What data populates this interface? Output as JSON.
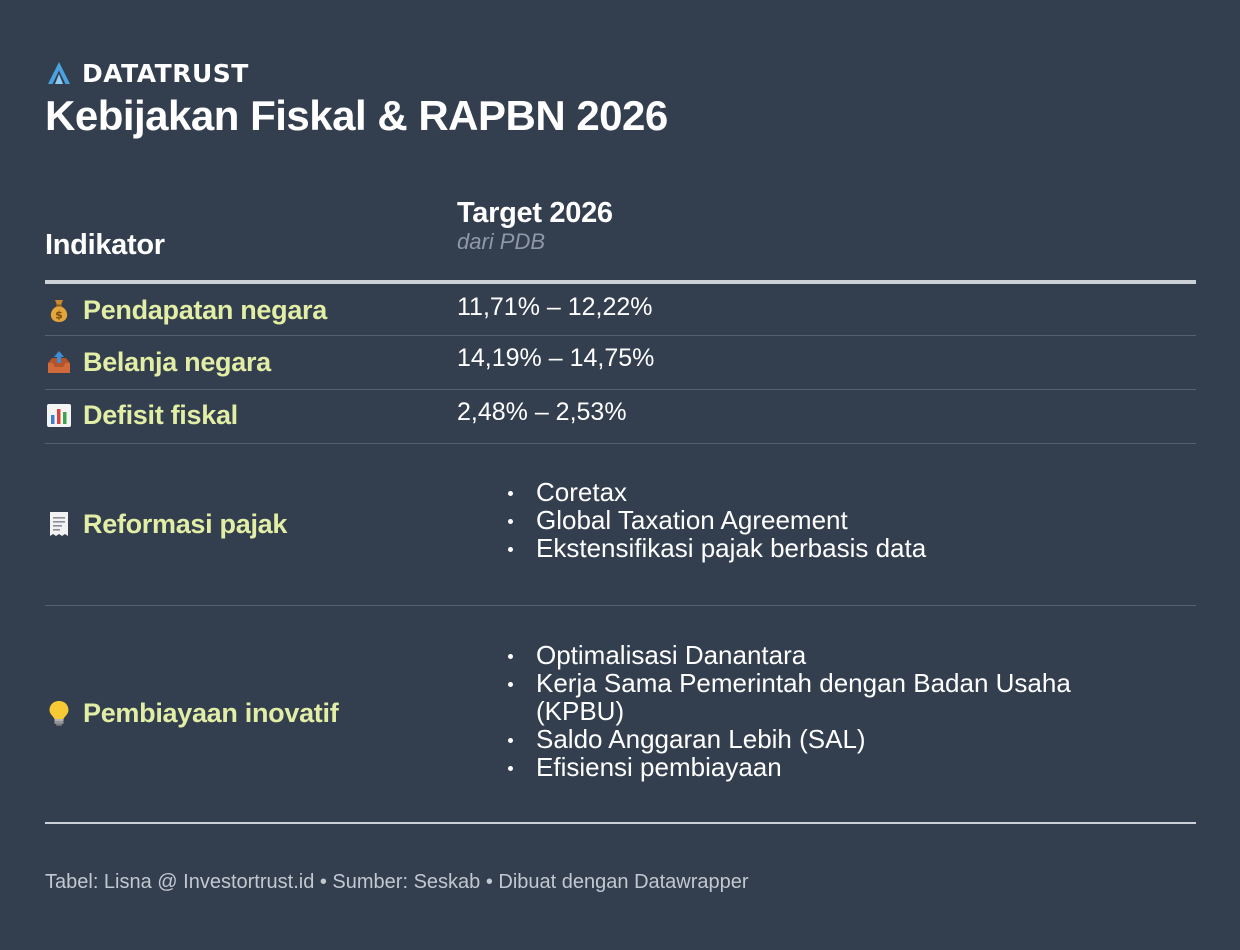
{
  "brand": {
    "name": "DATATRUST",
    "logo_icon": "datatrust-logo-icon"
  },
  "title": "Kebijakan Fiskal & RAPBN 2026",
  "table": {
    "columns": {
      "indicator": "Indikator",
      "target": "Target 2026",
      "target_sub": "dari PDB"
    },
    "rows": [
      {
        "icon": "money-bag-icon",
        "label": "Pendapatan negara",
        "value": "11,71% – 12,22%"
      },
      {
        "icon": "outbox-tray-icon",
        "label": "Belanja negara",
        "value": "14,19% – 14,75%"
      },
      {
        "icon": "bar-chart-icon",
        "label": "Defisit fiskal",
        "value": "2,48% – 2,53%"
      },
      {
        "icon": "receipt-icon",
        "label": "Reformasi pajak",
        "items": [
          "Coretax",
          "Global Taxation Agreement",
          "Ekstensifikasi pajak berbasis data"
        ]
      },
      {
        "icon": "light-bulb-icon",
        "label": "Pembiayaan inovatif",
        "items": [
          "Optimalisasi Danantara",
          "Kerja Sama Pemerintah dengan Badan Usaha (KPBU)",
          "Saldo Anggaran Lebih (SAL)",
          "Efisiensi pembiayaan"
        ]
      }
    ]
  },
  "footer": "Tabel: Lisna @ Investortrust.id • Sumber: Seskab • Dibuat dengan Datawrapper",
  "colors": {
    "background": "#333e4f",
    "label": "#e2eda5",
    "text": "#ffffff",
    "muted": "#8f98a5",
    "rule": "#cbd1d7",
    "logo": "#4aa3df"
  }
}
